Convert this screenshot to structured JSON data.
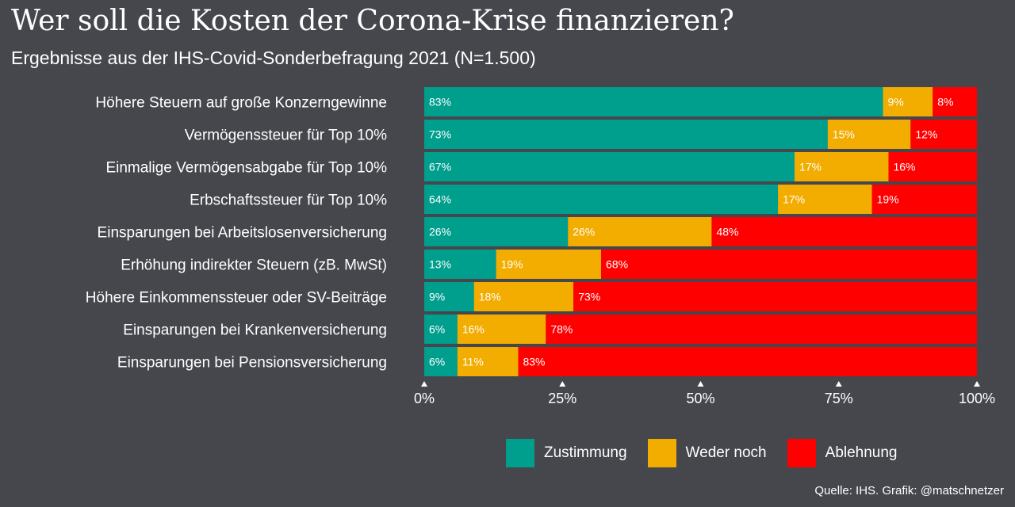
{
  "title": "Wer soll die Kosten der Corona-Krise finanzieren?",
  "subtitle": "Ergebnisse aus der IHS-Covid-Sonderbefragung 2021 (N=1.500)",
  "source": "Quelle: IHS. Grafik: @matschnetzer",
  "colors": {
    "background": "#45474d",
    "zustimmung": "#009e8c",
    "weder_noch": "#f2ad00",
    "ablehnung": "#ff0000"
  },
  "chart_data": {
    "type": "bar",
    "orientation": "horizontal",
    "stacked": true,
    "categories": [
      "Höhere Steuern auf große Konzerngewinne",
      "Vermögenssteuer für Top 10%",
      "Einmalige Vermögensabgabe für Top 10%",
      "Erbschaftssteuer für Top 10%",
      "Einsparungen bei Arbeitslosenversicherung",
      "Erhöhung indirekter Steuern (zB. MwSt)",
      "Höhere Einkommenssteuer oder SV-Beiträge",
      "Einsparungen bei Krankenversicherung",
      "Einsparungen bei Pensionsversicherung"
    ],
    "series": [
      {
        "name": "Zustimmung",
        "color": "#009e8c",
        "values": [
          83,
          73,
          67,
          64,
          26,
          13,
          9,
          6,
          6
        ]
      },
      {
        "name": "Weder noch",
        "color": "#f2ad00",
        "values": [
          9,
          15,
          17,
          17,
          26,
          19,
          18,
          16,
          11
        ]
      },
      {
        "name": "Ablehnung",
        "color": "#ff0000",
        "values": [
          8,
          12,
          16,
          19,
          48,
          68,
          73,
          78,
          83
        ]
      }
    ],
    "xlim": [
      0,
      100
    ],
    "xticks": [
      "0%",
      "25%",
      "50%",
      "75%",
      "100%"
    ],
    "grid": false,
    "legend_position": "bottom-right"
  }
}
